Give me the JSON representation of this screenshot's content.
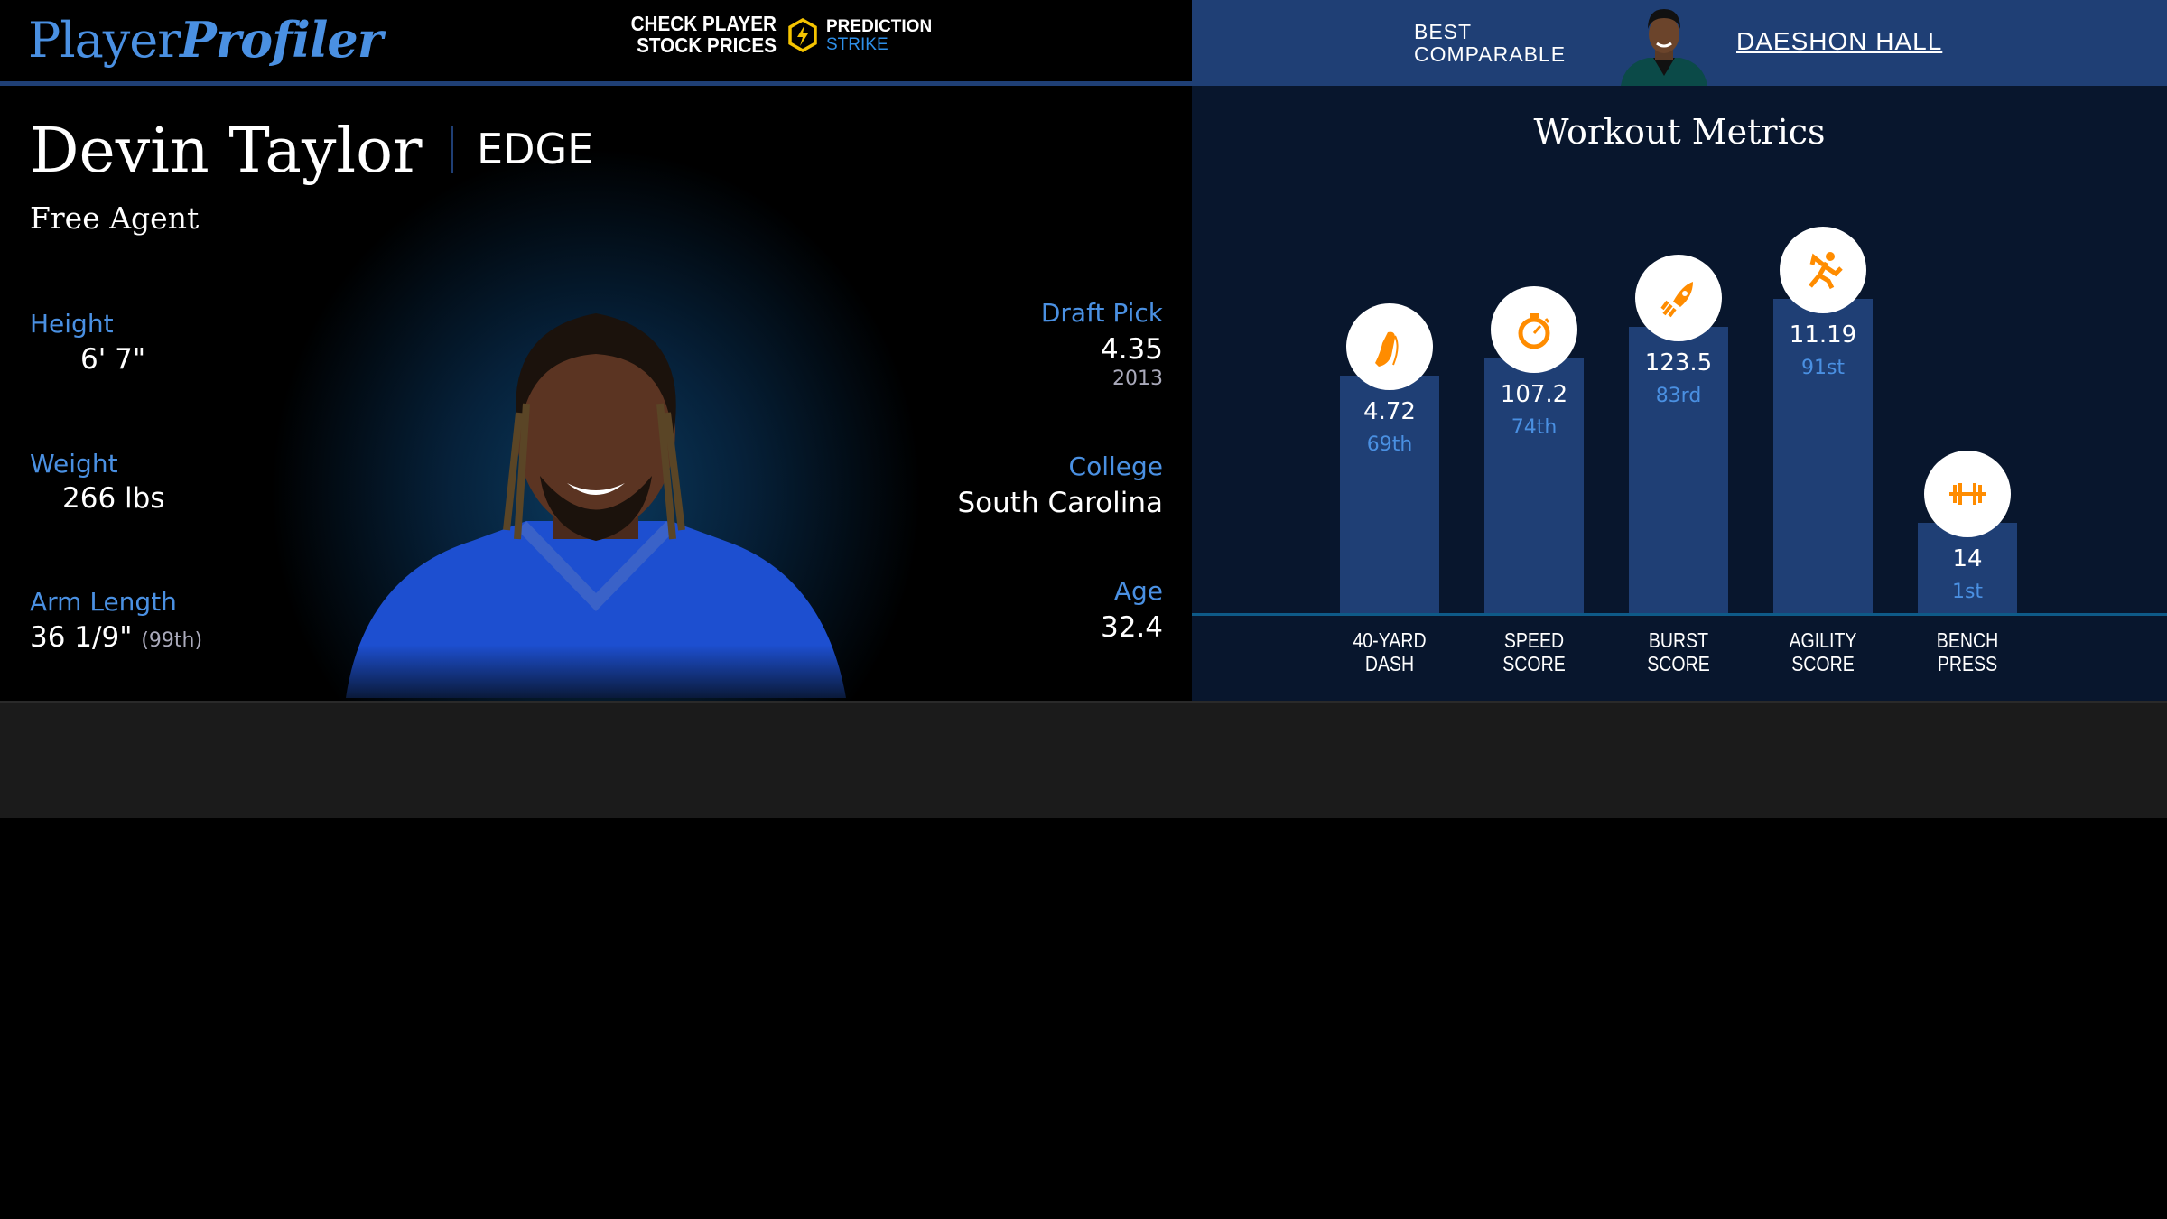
{
  "header": {
    "logo": {
      "part1": "Player",
      "part2": "Profiler"
    },
    "promo": {
      "line1": "CHECK PLAYER",
      "line2": "STOCK PRICES",
      "brand1": "PREDICTION",
      "brand2": "STRIKE",
      "icon": "lightning-bolt-icon"
    },
    "best_comparable": {
      "label_line1": "BEST",
      "label_line2": "COMPARABLE",
      "name": "DAESHON HALL"
    }
  },
  "player": {
    "name": "Devin Taylor",
    "position": "EDGE",
    "team": "Free Agent",
    "height": {
      "label": "Height",
      "value": "6' 7\""
    },
    "weight": {
      "label": "Weight",
      "value": "266 lbs"
    },
    "arm_length": {
      "label": "Arm Length",
      "value": "36 1/9\"",
      "percentile": "(99th)"
    },
    "draft_pick": {
      "label": "Draft Pick",
      "value": "4.35",
      "year": "2013"
    },
    "college": {
      "label": "College",
      "value": "South Carolina"
    },
    "age": {
      "label": "Age",
      "value": "32.4"
    }
  },
  "workout": {
    "title": "Workout Metrics",
    "colors": {
      "bar": "#1f3f75",
      "icon": "#ff8c00",
      "percentile": "#4a90e2"
    },
    "metrics": [
      {
        "label1": "40-YARD",
        "label2": "DASH",
        "value": "4.72",
        "percentile_text": "69th",
        "percentile": 69,
        "icon": "running-shoe-icon"
      },
      {
        "label1": "SPEED",
        "label2": "SCORE",
        "value": "107.2",
        "percentile_text": "74th",
        "percentile": 74,
        "icon": "stopwatch-icon"
      },
      {
        "label1": "BURST",
        "label2": "SCORE",
        "value": "123.5",
        "percentile_text": "83rd",
        "percentile": 83,
        "icon": "rocket-icon"
      },
      {
        "label1": "AGILITY",
        "label2": "SCORE",
        "value": "11.19",
        "percentile_text": "91st",
        "percentile": 91,
        "icon": "runner-icon"
      },
      {
        "label1": "BENCH",
        "label2": "PRESS",
        "value": "14",
        "percentile_text": "1st",
        "percentile": 1,
        "icon": "dumbbell-icon"
      }
    ]
  }
}
